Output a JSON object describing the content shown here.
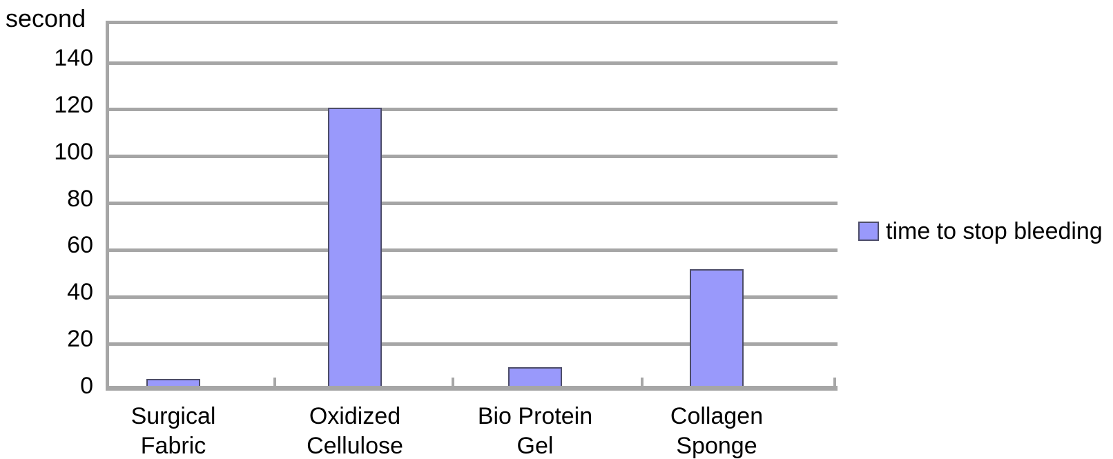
{
  "chart_data": {
    "type": "bar",
    "title": "",
    "ylabel": "second",
    "xlabel": "",
    "categories": [
      "Surgical Fabric",
      "Oxidized Cellulose",
      "Bio Protein Gel",
      "Collagen Sponge"
    ],
    "category_label_lines": [
      [
        "Surgical",
        "Fabric"
      ],
      [
        "Oxidized",
        "Cellulose"
      ],
      [
        "Bio Protein",
        "Gel"
      ],
      [
        "Collagen",
        "Sponge"
      ]
    ],
    "series": [
      {
        "name": "time to stop bleeding",
        "values": [
          5,
          121,
          10,
          52
        ]
      }
    ],
    "ylim": [
      0,
      158
    ],
    "yticks": [
      0,
      20,
      40,
      60,
      80,
      100,
      120,
      140
    ],
    "grid": true,
    "legend_position": "right",
    "colors": {
      "bar_fill": "#9999fb",
      "bar_border": "#4d4d68",
      "gridline": "#a6a6a6",
      "axis": "#a6a6a6",
      "text": "#000000",
      "background": "#ffffff"
    }
  },
  "y_axis": {
    "unit_label": "second",
    "tick_labels": [
      "0",
      "20",
      "40",
      "60",
      "80",
      "100",
      "120",
      "140"
    ]
  },
  "legend": {
    "label": "time to stop bleeding"
  }
}
